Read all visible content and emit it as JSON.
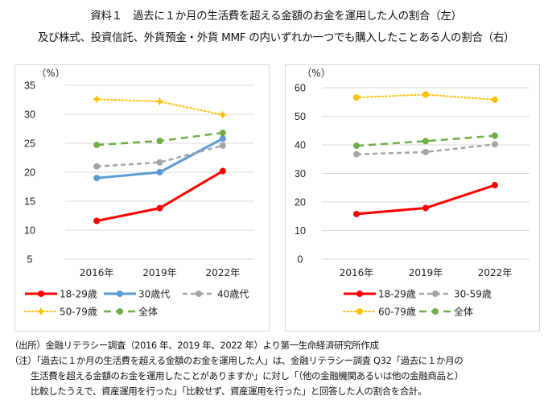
{
  "title": {
    "line1": "資料１　過去に１か月の生活費を超える金額のお金を運用した人の割合（左）",
    "line2": "及び株式、投資信託、外貨預金・外貨 MMF の内いずれか一つでも購入したことある人の割合（右）"
  },
  "notes": {
    "source": "（出所）金融リテラシー調査（2016 年、2019 年、2022 年）より第一生命経済研究所作成",
    "note_line1": "（注）「過去に１か月の生活費を超える金額のお金を運用した人」は、金融リテラシー調査 Q32「過去に１か月の",
    "note_line2": "生活費を超える金額のお金を運用したことがありますか」に対し「（他の金融機関あるいは他の金融商品と）",
    "note_line3": "比較したうえで、資産運用を行った」「比較せず、資産運用を行った」と回答した人の割合を合計。"
  },
  "chart_data": [
    {
      "type": "line",
      "title": "過去に１か月の生活費を超える金額のお金を運用した人の割合",
      "position": "left",
      "unit_label": "（%）",
      "xlabel": "",
      "ylabel": "%",
      "categories": [
        "2016年",
        "2019年",
        "2022年"
      ],
      "ylim": [
        5,
        35
      ],
      "yticks": [
        5,
        10,
        15,
        20,
        25,
        30,
        35
      ],
      "grid": true,
      "legend_position": "bottom",
      "series": [
        {
          "name": "18-29歳",
          "values": [
            11.6,
            13.8,
            20.2
          ],
          "color": "#ff0000",
          "style": "solid",
          "marker": "circle"
        },
        {
          "name": "30歳代",
          "values": [
            19.0,
            20.0,
            25.8
          ],
          "color": "#5b9bd5",
          "style": "solid",
          "marker": "circle"
        },
        {
          "name": "40歳代",
          "values": [
            21.0,
            21.7,
            24.6
          ],
          "color": "#a5a5a5",
          "style": "dash",
          "marker": "circle"
        },
        {
          "name": "50-79歳",
          "values": [
            32.6,
            32.2,
            29.9
          ],
          "color": "#ffc000",
          "style": "dot",
          "marker": "star"
        },
        {
          "name": "全体",
          "values": [
            24.7,
            25.4,
            26.8
          ],
          "color": "#70ad47",
          "style": "longdash",
          "marker": "circle"
        }
      ]
    },
    {
      "type": "line",
      "title": "株式、投資信託、外貨預金・外貨MMFの内いずれか一つでも購入したことある人の割合",
      "position": "right",
      "unit_label": "（%）",
      "xlabel": "",
      "ylabel": "%",
      "categories": [
        "2016年",
        "2019年",
        "2022年"
      ],
      "ylim": [
        0,
        60
      ],
      "yticks": [
        0,
        10,
        20,
        30,
        40,
        50,
        60
      ],
      "grid": true,
      "legend_position": "bottom",
      "series": [
        {
          "name": "18-29歳",
          "values": [
            15.8,
            17.9,
            25.9
          ],
          "color": "#ff0000",
          "style": "solid",
          "marker": "circle"
        },
        {
          "name": "30-59歳",
          "values": [
            36.7,
            37.5,
            40.2
          ],
          "color": "#a5a5a5",
          "style": "dash",
          "marker": "circle"
        },
        {
          "name": "60-79歳",
          "values": [
            56.6,
            57.6,
            55.8
          ],
          "color": "#ffc000",
          "style": "dot",
          "marker": "circle"
        },
        {
          "name": "全体",
          "values": [
            39.7,
            41.3,
            43.2
          ],
          "color": "#70ad47",
          "style": "longdash",
          "marker": "circle"
        }
      ]
    }
  ]
}
